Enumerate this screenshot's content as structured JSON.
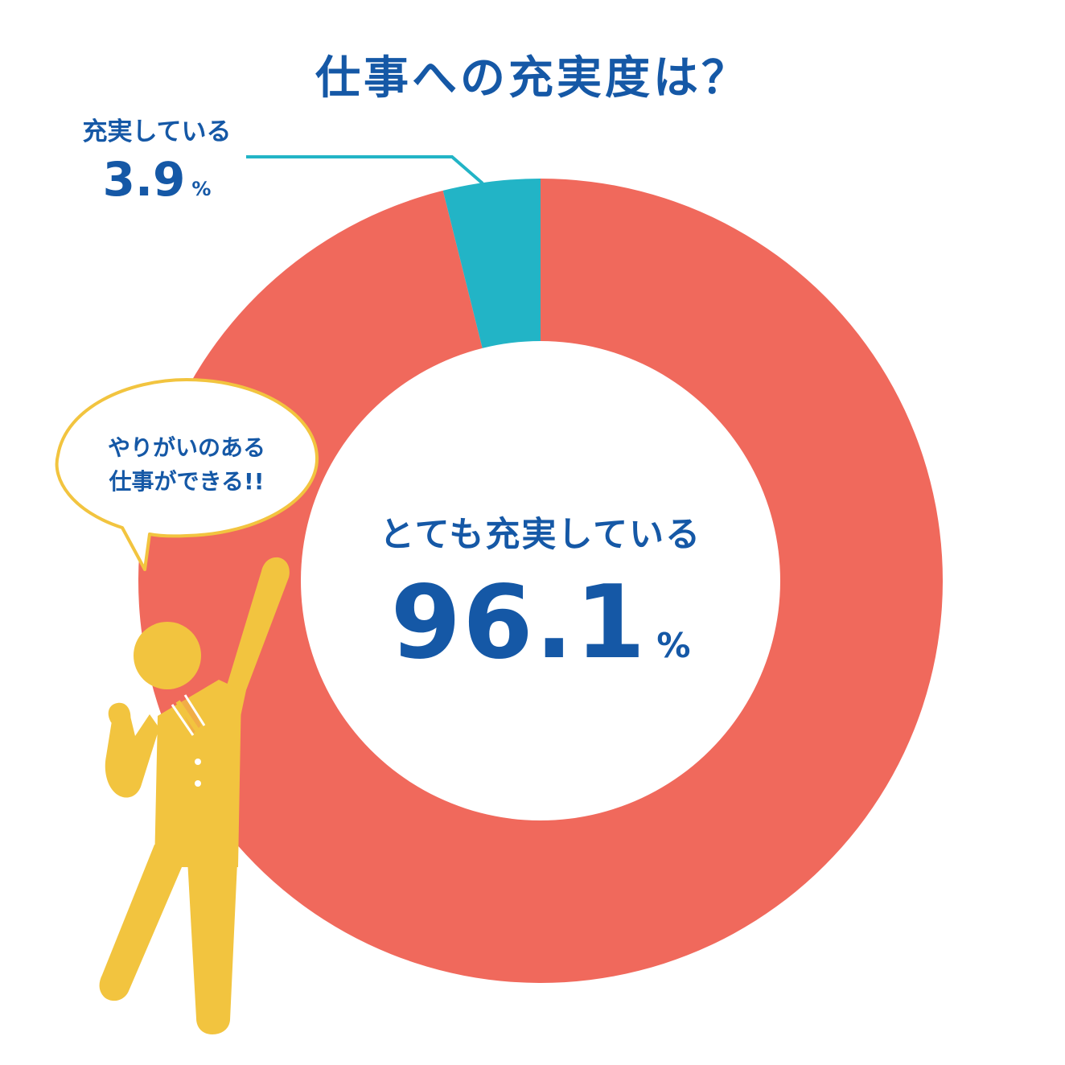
{
  "title": "仕事への充実度は？",
  "colors": {
    "title": "#1558a6",
    "primary_slice": "#f0695c",
    "secondary_slice": "#22b4c6",
    "figure": "#f2c43f",
    "bubble_border": "#f2c43f"
  },
  "chart_data": {
    "type": "pie",
    "variant": "donut",
    "title": "仕事への充実度は？",
    "unit": "%",
    "slices": [
      {
        "label": "とても充実している",
        "value": 96.1,
        "display": "96.1",
        "color": "#f0695c"
      },
      {
        "label": "充実している",
        "value": 3.9,
        "display": "3.9",
        "color": "#22b4c6"
      }
    ]
  },
  "callout": {
    "line1": "やりがいのある",
    "line2": "仕事ができる!!"
  },
  "icons": {
    "person": "person-raising-hand-icon",
    "speech_bubble": "speech-bubble-icon"
  }
}
